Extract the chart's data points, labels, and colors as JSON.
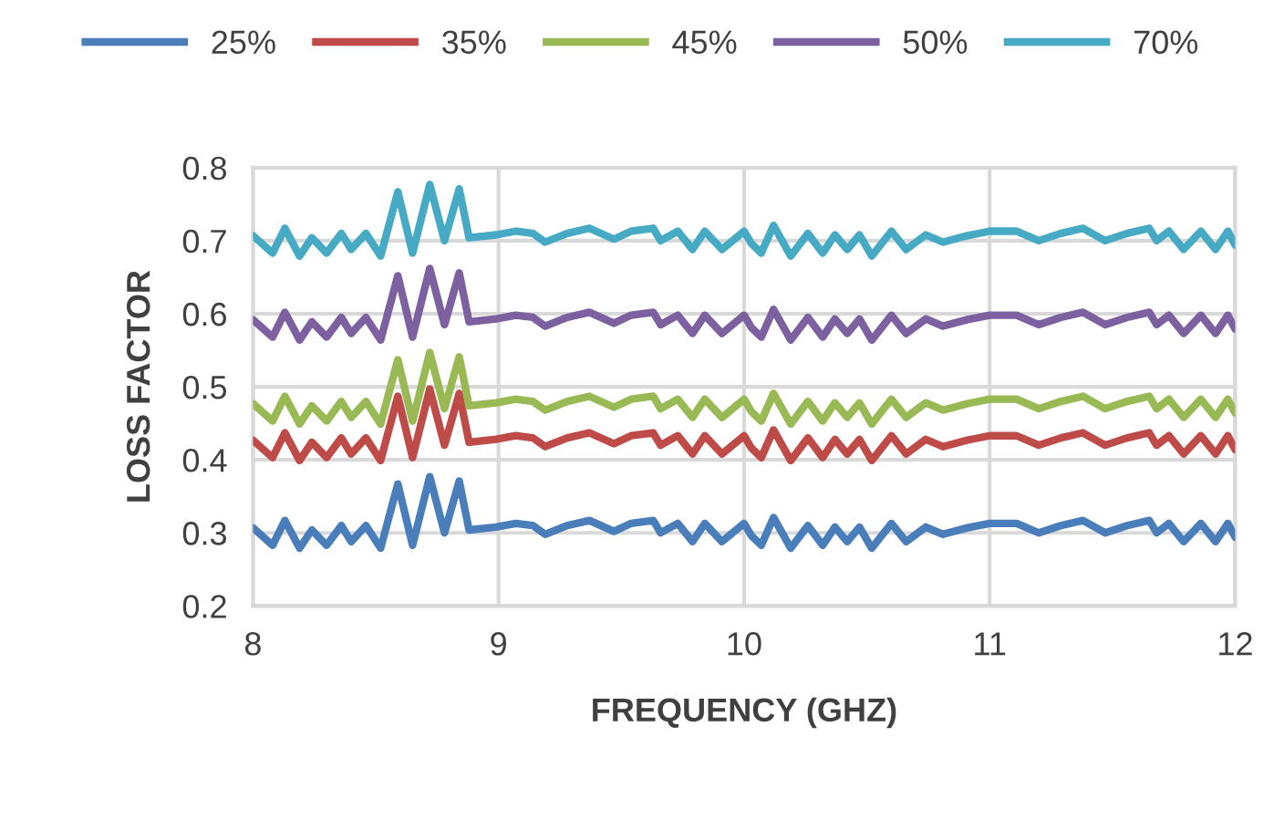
{
  "chart_data": {
    "type": "line",
    "xlabel": "FREQUENCY (GHZ)",
    "ylabel": "LOSS FACTOR",
    "xlim": [
      8,
      12
    ],
    "xticks": [
      8,
      9,
      10,
      11,
      12
    ],
    "ylim": [
      0.2,
      0.8
    ],
    "yticks": [
      0.2,
      0.3,
      0.4,
      0.5,
      0.6,
      0.7,
      0.8
    ],
    "grid": true,
    "legend": "top",
    "line_style": "solid",
    "marker": "none",
    "x": [
      8.0,
      8.08,
      8.13,
      8.19,
      8.24,
      8.3,
      8.36,
      8.4,
      8.46,
      8.52,
      8.59,
      8.65,
      8.72,
      8.78,
      8.84,
      8.88,
      8.99,
      9.07,
      9.14,
      9.19,
      9.28,
      9.37,
      9.47,
      9.54,
      9.63,
      9.66,
      9.73,
      9.79,
      9.84,
      9.91,
      10.0,
      10.03,
      10.07,
      10.12,
      10.19,
      10.26,
      10.32,
      10.37,
      10.42,
      10.47,
      10.52,
      10.6,
      10.66,
      10.74,
      10.81,
      10.91,
      11.0,
      11.11,
      11.2,
      11.29,
      11.38,
      11.47,
      11.56,
      11.65,
      11.68,
      11.73,
      11.79,
      11.86,
      11.92,
      11.97,
      12.0
    ],
    "series": [
      {
        "name": "25%",
        "color": "#4a7ebb",
        "values": [
          0.307,
          0.283,
          0.317,
          0.279,
          0.304,
          0.283,
          0.31,
          0.288,
          0.31,
          0.279,
          0.367,
          0.283,
          0.377,
          0.3,
          0.371,
          0.304,
          0.308,
          0.313,
          0.31,
          0.298,
          0.31,
          0.317,
          0.302,
          0.313,
          0.317,
          0.3,
          0.313,
          0.288,
          0.313,
          0.288,
          0.313,
          0.296,
          0.283,
          0.321,
          0.279,
          0.31,
          0.283,
          0.308,
          0.288,
          0.308,
          0.279,
          0.313,
          0.288,
          0.308,
          0.298,
          0.307,
          0.313,
          0.313,
          0.3,
          0.31,
          0.317,
          0.3,
          0.31,
          0.317,
          0.3,
          0.313,
          0.288,
          0.313,
          0.288,
          0.313,
          0.294
        ]
      },
      {
        "name": "35%",
        "color": "#be4b48",
        "values": [
          0.427,
          0.403,
          0.437,
          0.399,
          0.424,
          0.403,
          0.43,
          0.408,
          0.43,
          0.399,
          0.487,
          0.403,
          0.497,
          0.42,
          0.491,
          0.424,
          0.428,
          0.433,
          0.43,
          0.418,
          0.43,
          0.437,
          0.422,
          0.433,
          0.437,
          0.42,
          0.433,
          0.408,
          0.433,
          0.408,
          0.433,
          0.416,
          0.403,
          0.441,
          0.399,
          0.43,
          0.403,
          0.428,
          0.408,
          0.428,
          0.399,
          0.433,
          0.408,
          0.428,
          0.418,
          0.427,
          0.433,
          0.433,
          0.42,
          0.43,
          0.437,
          0.42,
          0.43,
          0.437,
          0.42,
          0.433,
          0.408,
          0.433,
          0.408,
          0.433,
          0.414
        ]
      },
      {
        "name": "45%",
        "color": "#98b954",
        "values": [
          0.477,
          0.453,
          0.487,
          0.449,
          0.474,
          0.453,
          0.48,
          0.458,
          0.48,
          0.449,
          0.537,
          0.453,
          0.547,
          0.47,
          0.541,
          0.474,
          0.478,
          0.483,
          0.48,
          0.468,
          0.48,
          0.487,
          0.472,
          0.483,
          0.487,
          0.47,
          0.483,
          0.458,
          0.483,
          0.458,
          0.483,
          0.466,
          0.453,
          0.491,
          0.449,
          0.48,
          0.453,
          0.478,
          0.458,
          0.478,
          0.449,
          0.483,
          0.458,
          0.478,
          0.468,
          0.477,
          0.483,
          0.483,
          0.47,
          0.48,
          0.487,
          0.47,
          0.48,
          0.487,
          0.47,
          0.483,
          0.458,
          0.483,
          0.458,
          0.483,
          0.464
        ]
      },
      {
        "name": "50%",
        "color": "#7d60a0",
        "values": [
          0.592,
          0.568,
          0.602,
          0.564,
          0.589,
          0.568,
          0.595,
          0.573,
          0.595,
          0.564,
          0.652,
          0.568,
          0.662,
          0.585,
          0.656,
          0.589,
          0.593,
          0.598,
          0.595,
          0.583,
          0.595,
          0.602,
          0.587,
          0.598,
          0.602,
          0.585,
          0.598,
          0.573,
          0.598,
          0.573,
          0.598,
          0.581,
          0.568,
          0.606,
          0.564,
          0.595,
          0.568,
          0.593,
          0.573,
          0.593,
          0.564,
          0.598,
          0.573,
          0.593,
          0.583,
          0.592,
          0.598,
          0.598,
          0.585,
          0.595,
          0.602,
          0.585,
          0.595,
          0.602,
          0.585,
          0.598,
          0.573,
          0.598,
          0.573,
          0.598,
          0.579
        ]
      },
      {
        "name": "70%",
        "color": "#46aac5",
        "values": [
          0.707,
          0.683,
          0.717,
          0.679,
          0.704,
          0.683,
          0.71,
          0.688,
          0.71,
          0.679,
          0.767,
          0.683,
          0.777,
          0.7,
          0.771,
          0.704,
          0.708,
          0.713,
          0.71,
          0.698,
          0.71,
          0.717,
          0.702,
          0.713,
          0.717,
          0.7,
          0.713,
          0.688,
          0.713,
          0.688,
          0.713,
          0.696,
          0.683,
          0.721,
          0.679,
          0.71,
          0.683,
          0.708,
          0.688,
          0.708,
          0.679,
          0.713,
          0.688,
          0.708,
          0.698,
          0.707,
          0.713,
          0.713,
          0.7,
          0.71,
          0.717,
          0.7,
          0.71,
          0.717,
          0.7,
          0.713,
          0.688,
          0.713,
          0.688,
          0.713,
          0.694
        ]
      }
    ]
  }
}
